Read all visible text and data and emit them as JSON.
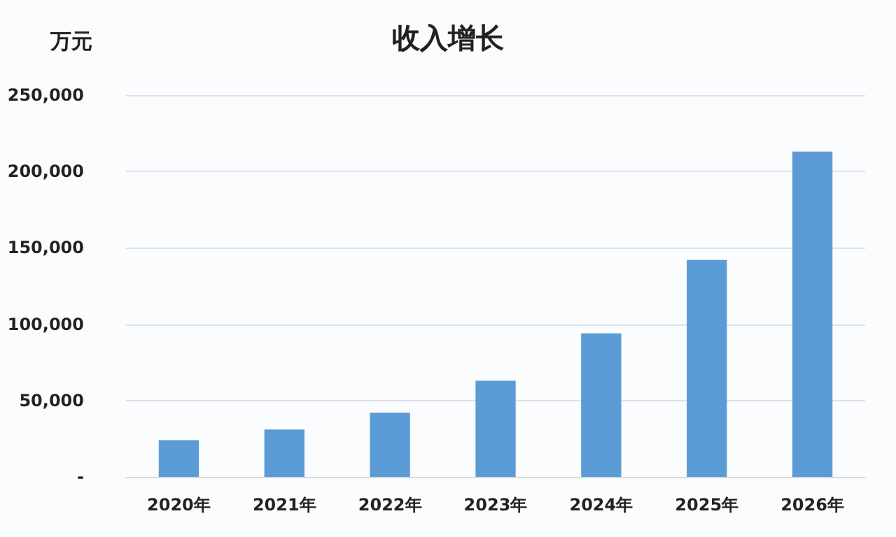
{
  "chart_data": {
    "type": "bar",
    "title": "收入增长",
    "ylabel": "万元",
    "categories": [
      "2020年",
      "2021年",
      "2022年",
      "2023年",
      "2024年",
      "2025年",
      "2026年"
    ],
    "values": [
      24000,
      31000,
      42000,
      63000,
      94000,
      142000,
      213000
    ],
    "color": "#5b9bd5",
    "ylim": [
      0,
      250000
    ],
    "yticks": [
      {
        "value": 0,
        "label": "-"
      },
      {
        "value": 50000,
        "label": "50,000"
      },
      {
        "value": 100000,
        "label": "100,000"
      },
      {
        "value": 150000,
        "label": "150,000"
      },
      {
        "value": 200000,
        "label": "200,000"
      },
      {
        "value": 250000,
        "label": "250,000"
      }
    ],
    "grid": "y"
  }
}
